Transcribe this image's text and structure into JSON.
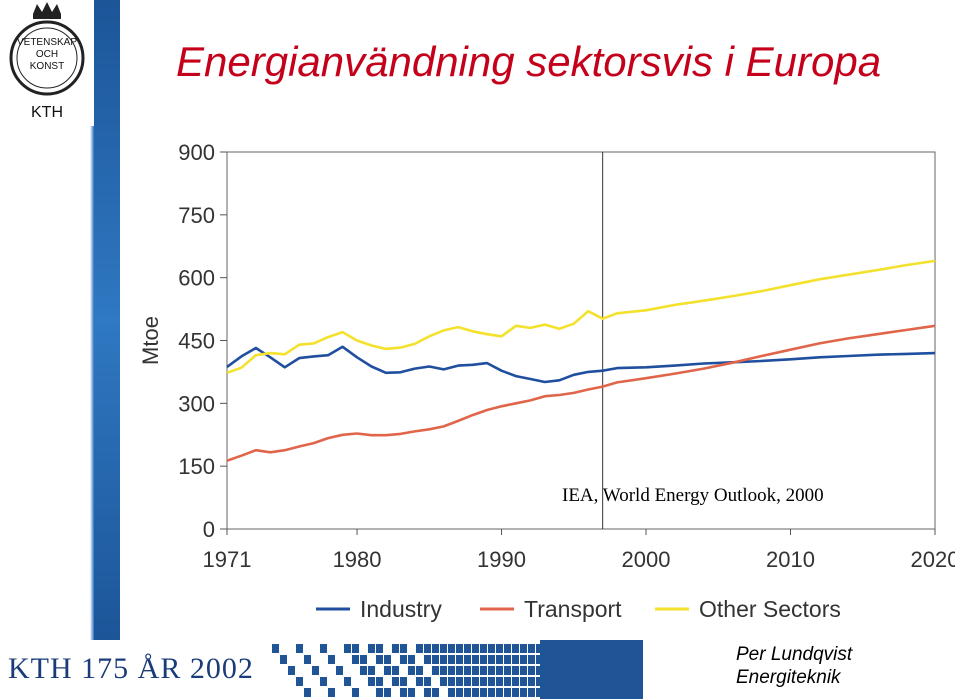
{
  "title": "Energianvändning sektorsvis i Europa",
  "logo": {
    "text_lines": [
      "VETENSKAP",
      "OCH",
      "KONST"
    ],
    "name": "KTH"
  },
  "footer": {
    "banner": "KTH 175 ÅR 2002",
    "author": "Per Lundqvist",
    "department": "Energiteknik"
  },
  "chart_data": {
    "type": "line",
    "ylabel": "Mtoe",
    "xlabel": "",
    "xlim": [
      1971,
      2020
    ],
    "ylim": [
      0,
      900
    ],
    "x_ticks": [
      1971,
      1980,
      1990,
      2000,
      2010,
      2020
    ],
    "y_ticks": [
      0,
      150,
      300,
      450,
      600,
      750,
      900
    ],
    "projection_divider_year": 1997,
    "annotation": "IEA, World Energy Outlook, 2000",
    "legend_position": "bottom",
    "grid": false,
    "series": [
      {
        "name": "Industry",
        "color": "#1f4f9e",
        "x": [
          1971,
          1972,
          1973,
          1974,
          1975,
          1976,
          1977,
          1978,
          1979,
          1980,
          1981,
          1982,
          1983,
          1984,
          1985,
          1986,
          1987,
          1988,
          1989,
          1990,
          1991,
          1992,
          1993,
          1994,
          1995,
          1996,
          1997,
          1998,
          2000,
          2002,
          2004,
          2006,
          2008,
          2010,
          2012,
          2014,
          2016,
          2018,
          2020
        ],
        "y": [
          387,
          412,
          432,
          410,
          386,
          408,
          412,
          415,
          435,
          410,
          388,
          373,
          374,
          383,
          388,
          381,
          390,
          392,
          396,
          378,
          365,
          358,
          351,
          355,
          368,
          375,
          378,
          384,
          386,
          390,
          395,
          398,
          401,
          405,
          410,
          413,
          416,
          418,
          420
        ]
      },
      {
        "name": "Transport",
        "color": "#e0654a",
        "x": [
          1971,
          1972,
          1973,
          1974,
          1975,
          1976,
          1977,
          1978,
          1979,
          1980,
          1981,
          1982,
          1983,
          1984,
          1985,
          1986,
          1987,
          1988,
          1989,
          1990,
          1991,
          1992,
          1993,
          1994,
          1995,
          1996,
          1997,
          1998,
          2000,
          2002,
          2004,
          2006,
          2008,
          2010,
          2012,
          2014,
          2016,
          2018,
          2020
        ],
        "y": [
          163,
          175,
          188,
          183,
          188,
          197,
          205,
          217,
          225,
          228,
          224,
          224,
          227,
          233,
          238,
          245,
          258,
          272,
          284,
          293,
          300,
          307,
          317,
          320,
          325,
          333,
          340,
          350,
          360,
          371,
          383,
          397,
          413,
          428,
          443,
          455,
          465,
          475,
          485
        ]
      },
      {
        "name": "Other Sectors",
        "color": "#f3e12c",
        "x": [
          1971,
          1972,
          1973,
          1974,
          1975,
          1976,
          1977,
          1978,
          1979,
          1980,
          1981,
          1982,
          1983,
          1984,
          1985,
          1986,
          1987,
          1988,
          1989,
          1990,
          1991,
          1992,
          1993,
          1994,
          1995,
          1996,
          1997,
          1998,
          2000,
          2002,
          2004,
          2006,
          2008,
          2010,
          2012,
          2014,
          2016,
          2018,
          2020
        ],
        "y": [
          373,
          385,
          415,
          420,
          417,
          440,
          443,
          458,
          470,
          450,
          438,
          430,
          433,
          442,
          460,
          474,
          482,
          472,
          465,
          460,
          485,
          480,
          488,
          478,
          490,
          520,
          502,
          515,
          522,
          535,
          545,
          556,
          568,
          582,
          596,
          607,
          618,
          630,
          640
        ]
      }
    ]
  }
}
